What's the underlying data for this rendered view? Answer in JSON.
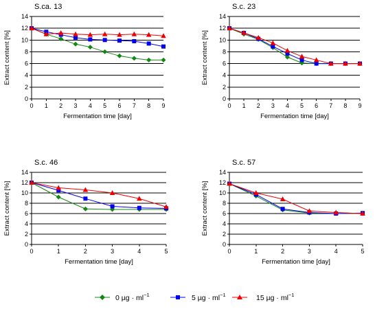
{
  "chart_data": [
    {
      "type": "line",
      "title": "S.ca. 13",
      "xlabel": "Fermentation time [day]",
      "ylabel": "Extract content [%]",
      "xlim": [
        0,
        9
      ],
      "ylim": [
        0,
        14
      ],
      "xticks": [
        0,
        1,
        2,
        3,
        4,
        5,
        6,
        7,
        8,
        9
      ],
      "yticks": [
        0,
        2,
        4,
        6,
        8,
        10,
        12,
        14
      ],
      "grid": "horizontal",
      "x": [
        0,
        1,
        2,
        3,
        4,
        5,
        6,
        7,
        8,
        9
      ],
      "series": [
        {
          "name": "0 μg·ml⁻¹",
          "values": [
            12.0,
            11.0,
            10.2,
            9.3,
            8.8,
            8.0,
            7.3,
            6.9,
            6.6,
            6.6
          ]
        },
        {
          "name": "5 μg·ml⁻¹",
          "values": [
            12.0,
            11.4,
            10.9,
            10.4,
            10.1,
            10.0,
            9.9,
            9.8,
            9.4,
            8.9
          ]
        },
        {
          "name": "15 μg·ml⁻¹",
          "values": [
            12.0,
            11.0,
            11.2,
            11.0,
            10.9,
            11.0,
            10.9,
            11.0,
            10.9,
            10.7
          ]
        }
      ]
    },
    {
      "type": "line",
      "title": "S.c. 23",
      "xlabel": "Fermentation time [day]",
      "ylabel": "Extract content [%]",
      "xlim": [
        0,
        9
      ],
      "ylim": [
        0,
        14
      ],
      "xticks": [
        0,
        1,
        2,
        3,
        4,
        5,
        6,
        7,
        8,
        9
      ],
      "yticks": [
        0,
        2,
        4,
        6,
        8,
        10,
        12,
        14
      ],
      "grid": "horizontal",
      "x": [
        0,
        1,
        2,
        3,
        4,
        5,
        6,
        7,
        8,
        9
      ],
      "series": [
        {
          "name": "0 μg·ml⁻¹",
          "values": [
            12.0,
            11.0,
            10.1,
            8.7,
            7.1,
            6.1,
            6.0,
            6.0,
            6.0,
            6.0
          ]
        },
        {
          "name": "5 μg·ml⁻¹",
          "values": [
            12.0,
            11.2,
            10.2,
            8.9,
            7.7,
            6.6,
            6.0,
            6.0,
            6.0,
            6.0
          ]
        },
        {
          "name": "15 μg·ml⁻¹",
          "values": [
            12.0,
            11.2,
            10.4,
            9.5,
            8.2,
            7.2,
            6.6,
            6.0,
            6.0,
            6.0
          ]
        }
      ]
    },
    {
      "type": "line",
      "title": "S.c. 46",
      "xlabel": "Fermentation time [day]",
      "ylabel": "Extract content [%]",
      "xlim": [
        0,
        5
      ],
      "ylim": [
        0,
        14
      ],
      "xticks": [
        0,
        1,
        2,
        3,
        4,
        5
      ],
      "yticks": [
        0,
        2,
        4,
        6,
        8,
        10,
        12,
        14
      ],
      "grid": "horizontal",
      "x": [
        0,
        1,
        2,
        3,
        4,
        5
      ],
      "series": [
        {
          "name": "0 μg·ml⁻¹",
          "values": [
            12.0,
            9.2,
            6.9,
            6.8,
            6.8,
            6.8
          ]
        },
        {
          "name": "5 μg·ml⁻¹",
          "values": [
            12.0,
            10.5,
            8.9,
            7.4,
            7.1,
            7.0
          ]
        },
        {
          "name": "15 μg·ml⁻¹",
          "values": [
            12.0,
            11.0,
            10.6,
            10.0,
            8.9,
            7.3
          ]
        }
      ]
    },
    {
      "type": "line",
      "title": "S.c. 57",
      "xlabel": "Fermentation time [day]",
      "ylabel": "Extract content [%]",
      "xlim": [
        0,
        5
      ],
      "ylim": [
        0,
        14
      ],
      "xticks": [
        0,
        1,
        2,
        3,
        4,
        5
      ],
      "yticks": [
        0,
        2,
        4,
        6,
        8,
        10,
        12,
        14
      ],
      "grid": "horizontal",
      "x": [
        0,
        1,
        2,
        3,
        4,
        5
      ],
      "series": [
        {
          "name": "0 μg·ml⁻¹",
          "values": [
            11.8,
            9.4,
            6.7,
            6.1,
            6.0,
            6.0
          ]
        },
        {
          "name": "5 μg·ml⁻¹",
          "values": [
            11.8,
            9.7,
            6.9,
            6.2,
            6.0,
            6.1
          ]
        },
        {
          "name": "15 μg·ml⁻¹",
          "values": [
            11.8,
            10.0,
            8.8,
            6.5,
            6.2,
            6.0
          ]
        }
      ]
    }
  ],
  "legend": {
    "placement": "bottom",
    "items": [
      {
        "label": "0  µg · ml",
        "superscript": "−1",
        "color": "#118811",
        "marker": "diamond"
      },
      {
        "label": "5  µg · ml",
        "superscript": "−1",
        "color": "#0000ee",
        "marker": "square"
      },
      {
        "label": "15  µg · ml",
        "superscript": "−1",
        "color": "#ee0000",
        "marker": "triangle"
      }
    ]
  }
}
